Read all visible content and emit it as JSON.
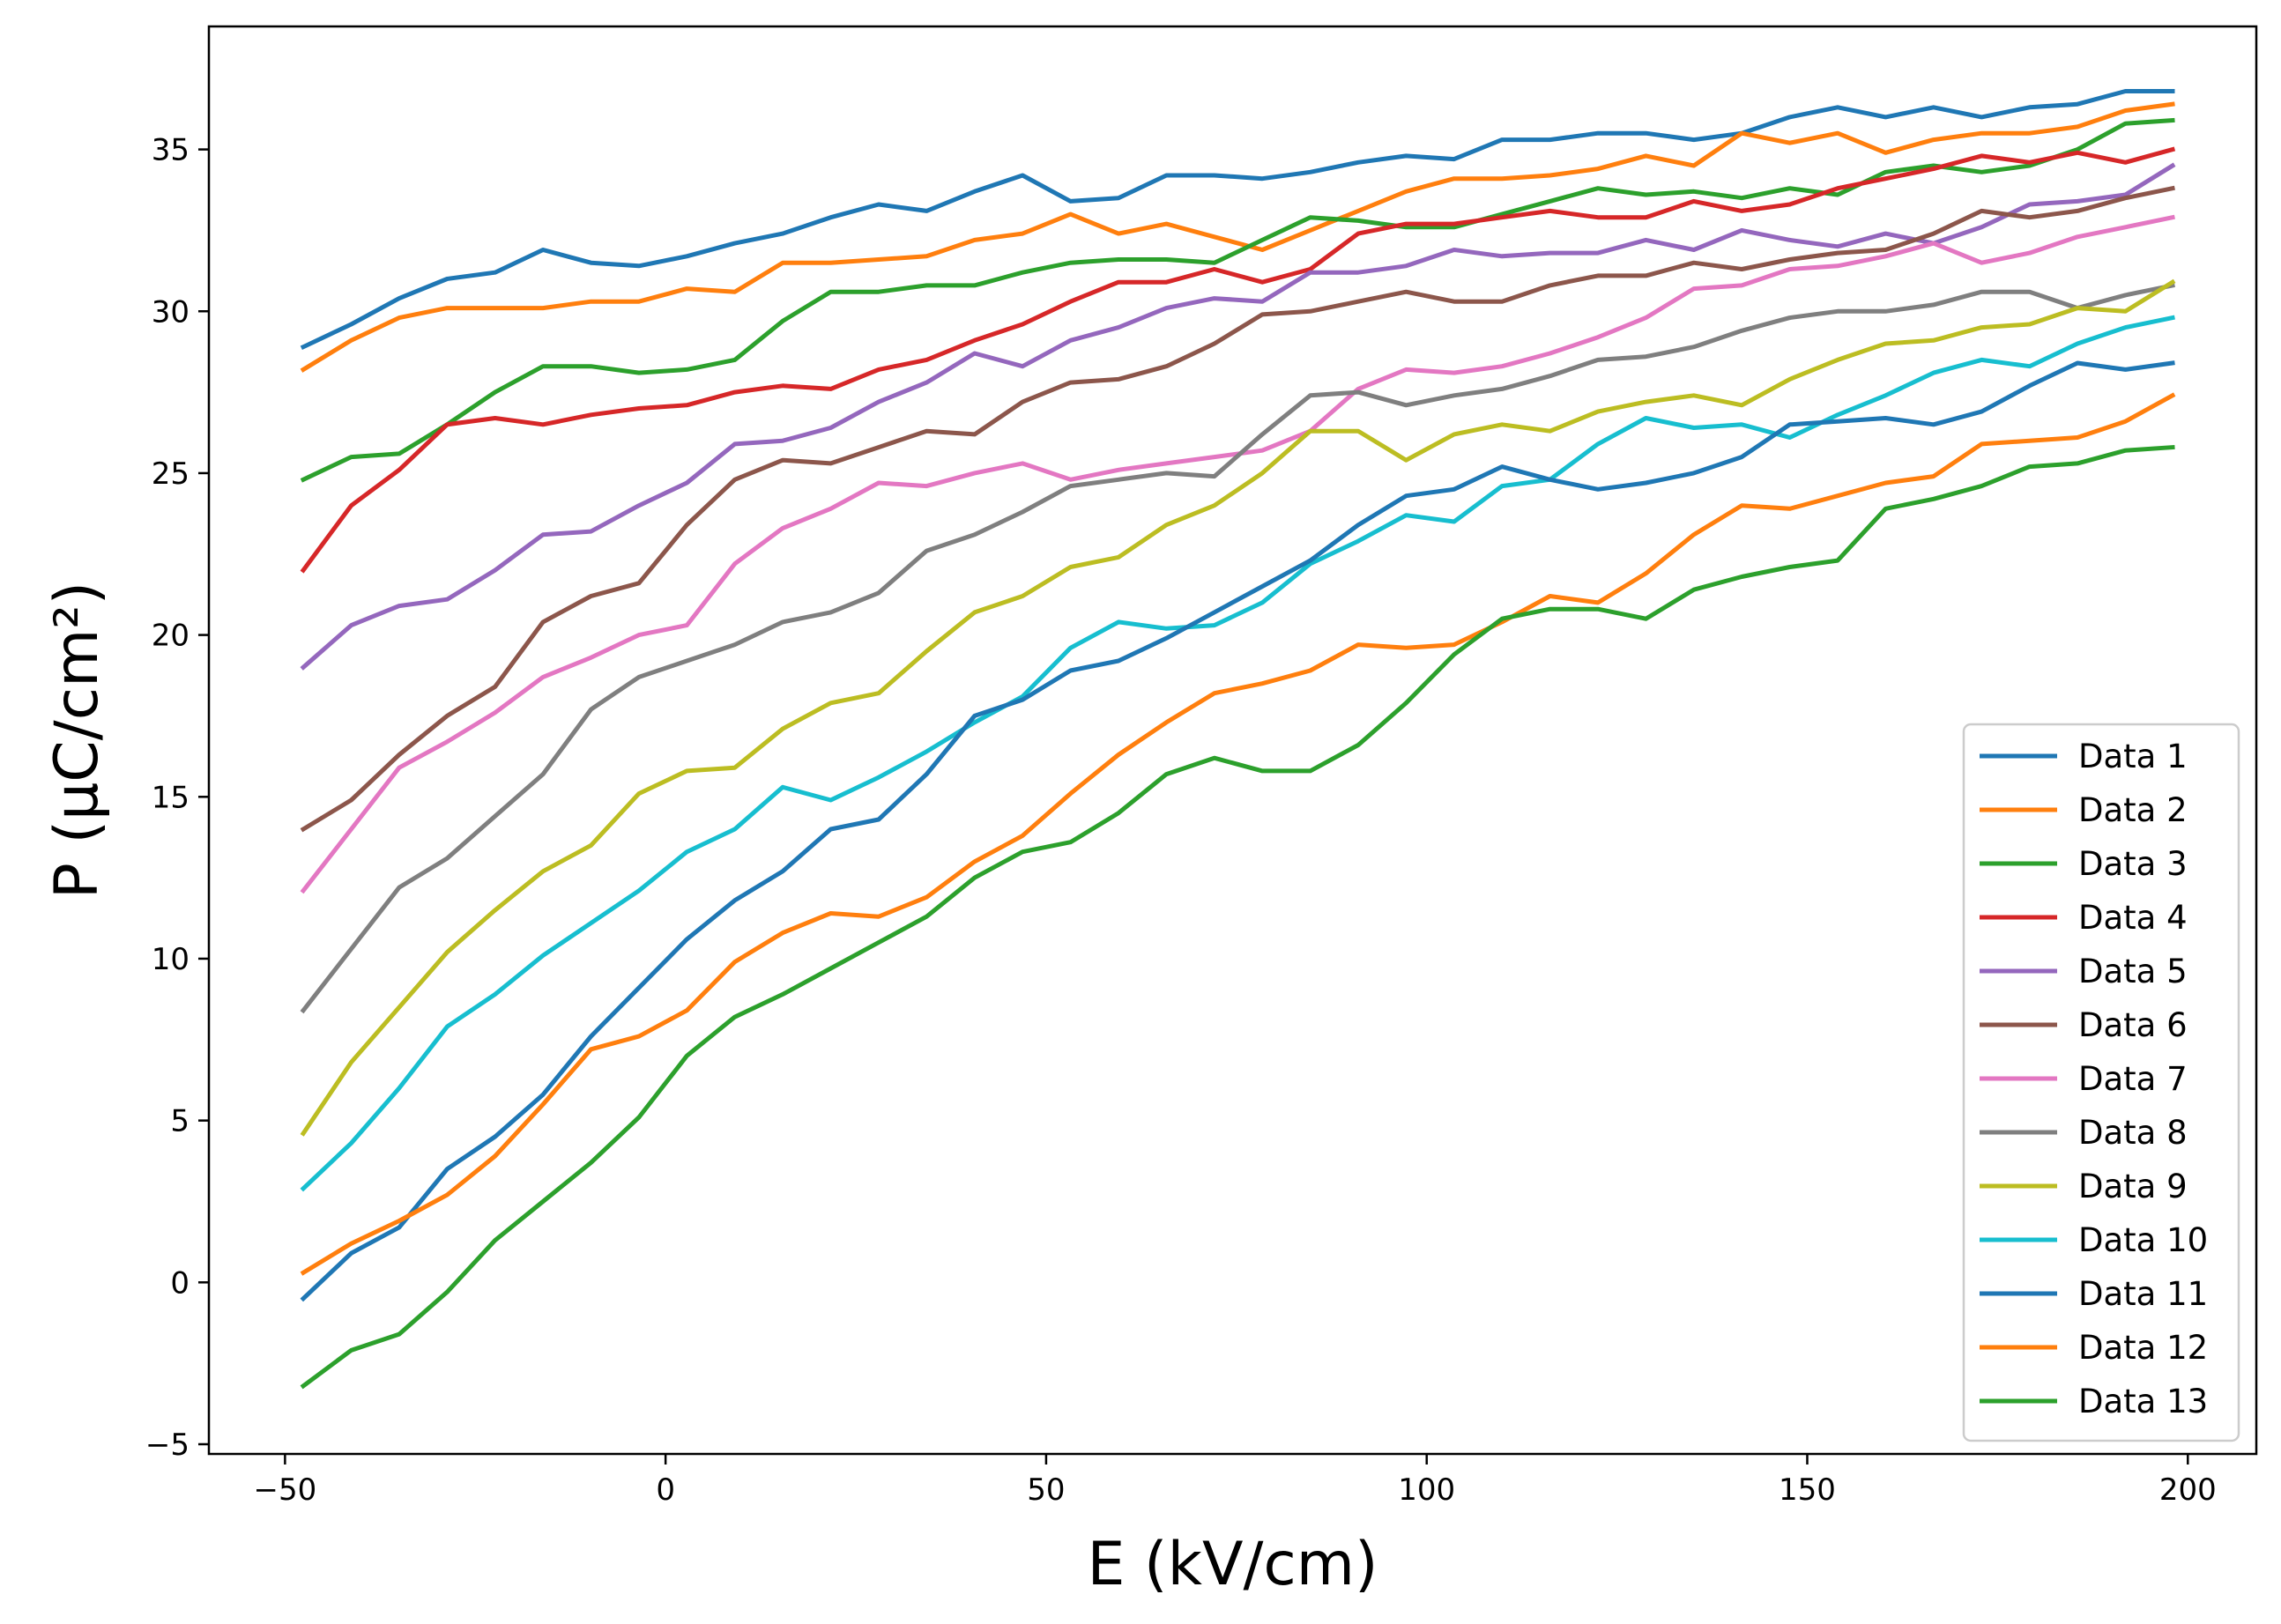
{
  "chart_data": {
    "type": "line",
    "xlabel": "E (kV/cm)",
    "ylabel": "P (μC/cm²)",
    "xlim": [
      -60,
      209
    ],
    "ylim": [
      -5.3,
      38.8
    ],
    "xticks": [
      -50,
      0,
      50,
      100,
      150,
      200
    ],
    "xtick_labels": [
      "−50",
      "0",
      "50",
      "100",
      "150",
      "200"
    ],
    "yticks": [
      -5,
      0,
      5,
      10,
      15,
      20,
      25,
      30,
      35
    ],
    "ytick_labels": [
      "−5",
      "0",
      "5",
      "10",
      "15",
      "20",
      "25",
      "30",
      "35"
    ],
    "grid": false,
    "legend_position": "bottom-right",
    "x": [
      -47.6,
      -41.3,
      -35.0,
      -28.7,
      -22.4,
      -16.1,
      -9.8,
      -3.5,
      2.8,
      9.1,
      15.4,
      21.7,
      28.0,
      34.3,
      40.6,
      46.9,
      53.2,
      59.5,
      65.8,
      72.1,
      78.4,
      84.7,
      91.0,
      97.3,
      103.6,
      109.9,
      116.2,
      122.5,
      128.8,
      135.1,
      141.4,
      147.7,
      154.0,
      160.3,
      166.6,
      172.9,
      179.2,
      185.5,
      191.8,
      198.0
    ],
    "series": [
      {
        "name": "Data 1",
        "color": "#1f77b4",
        "values": [
          28.9,
          29.6,
          30.4,
          31.0,
          31.2,
          31.9,
          31.5,
          31.4,
          31.7,
          32.1,
          32.4,
          32.9,
          33.3,
          33.1,
          33.7,
          34.2,
          33.4,
          33.5,
          34.2,
          34.2,
          34.1,
          34.3,
          34.6,
          34.8,
          34.7,
          35.3,
          35.3,
          35.5,
          35.5,
          35.3,
          35.5,
          36.0,
          36.3,
          36.0,
          36.3,
          36.0,
          36.3,
          36.4,
          36.8,
          36.8
        ]
      },
      {
        "name": "Data 2",
        "color": "#ff7f0e",
        "values": [
          28.2,
          29.1,
          29.8,
          30.1,
          30.1,
          30.1,
          30.3,
          30.3,
          30.7,
          30.6,
          31.5,
          31.5,
          31.6,
          31.7,
          32.2,
          32.4,
          33.0,
          32.4,
          32.7,
          32.3,
          31.9,
          32.5,
          33.1,
          33.7,
          34.1,
          34.1,
          34.2,
          34.4,
          34.8,
          34.5,
          35.5,
          35.2,
          35.5,
          34.9,
          35.3,
          35.5,
          35.5,
          35.7,
          36.2,
          36.4
        ]
      },
      {
        "name": "Data 3",
        "color": "#2ca02c",
        "values": [
          24.8,
          25.5,
          25.6,
          26.5,
          27.5,
          28.3,
          28.3,
          28.1,
          28.2,
          28.5,
          29.7,
          30.6,
          30.6,
          30.8,
          30.8,
          31.2,
          31.5,
          31.6,
          31.6,
          31.5,
          32.2,
          32.9,
          32.8,
          32.6,
          32.6,
          33.0,
          33.4,
          33.8,
          33.6,
          33.7,
          33.5,
          33.8,
          33.6,
          34.3,
          34.5,
          34.3,
          34.5,
          35.0,
          35.8,
          35.9
        ]
      },
      {
        "name": "Data 4",
        "color": "#d62728",
        "values": [
          22.0,
          24.0,
          25.1,
          26.5,
          26.7,
          26.5,
          26.8,
          27.0,
          27.1,
          27.5,
          27.7,
          27.6,
          28.2,
          28.5,
          29.1,
          29.6,
          30.3,
          30.9,
          30.9,
          31.3,
          30.9,
          31.3,
          32.4,
          32.7,
          32.7,
          32.9,
          33.1,
          32.9,
          32.9,
          33.4,
          33.1,
          33.3,
          33.8,
          34.1,
          34.4,
          34.8,
          34.6,
          34.9,
          34.6,
          35.0
        ]
      },
      {
        "name": "Data 5",
        "color": "#9467bd",
        "values": [
          19.0,
          20.3,
          20.9,
          21.1,
          22.0,
          23.1,
          23.2,
          24.0,
          24.7,
          25.9,
          26.0,
          26.4,
          27.2,
          27.8,
          28.7,
          28.3,
          29.1,
          29.5,
          30.1,
          30.4,
          30.3,
          31.2,
          31.2,
          31.4,
          31.9,
          31.7,
          31.8,
          31.8,
          32.2,
          31.9,
          32.5,
          32.2,
          32.0,
          32.4,
          32.1,
          32.6,
          33.3,
          33.4,
          33.6,
          34.5
        ]
      },
      {
        "name": "Data 6",
        "color": "#8c564b",
        "values": [
          14.0,
          14.9,
          16.3,
          17.5,
          18.4,
          20.4,
          21.2,
          21.6,
          23.4,
          24.8,
          25.4,
          25.3,
          25.8,
          26.3,
          26.2,
          27.2,
          27.8,
          27.9,
          28.3,
          29.0,
          29.9,
          30.0,
          30.3,
          30.6,
          30.3,
          30.3,
          30.8,
          31.1,
          31.1,
          31.5,
          31.3,
          31.6,
          31.8,
          31.9,
          32.4,
          33.1,
          32.9,
          33.1,
          33.5,
          33.8
        ]
      },
      {
        "name": "Data 7",
        "color": "#e377c2",
        "values": [
          12.1,
          14.0,
          15.9,
          16.7,
          17.6,
          18.7,
          19.3,
          20.0,
          20.3,
          22.2,
          23.3,
          23.9,
          24.7,
          24.6,
          25.0,
          25.3,
          24.8,
          25.1,
          25.3,
          25.5,
          25.7,
          26.3,
          27.6,
          28.2,
          28.1,
          28.3,
          28.7,
          29.2,
          29.8,
          30.7,
          30.8,
          31.3,
          31.4,
          31.7,
          32.1,
          31.5,
          31.8,
          32.3,
          32.6,
          32.9
        ]
      },
      {
        "name": "Data 8",
        "color": "#7f7f7f",
        "values": [
          8.4,
          10.3,
          12.2,
          13.1,
          14.4,
          15.7,
          17.7,
          18.7,
          19.2,
          19.7,
          20.4,
          20.7,
          21.3,
          22.6,
          23.1,
          23.8,
          24.6,
          24.8,
          25.0,
          24.9,
          26.2,
          27.4,
          27.5,
          27.1,
          27.4,
          27.6,
          28.0,
          28.5,
          28.6,
          28.9,
          29.4,
          29.8,
          30.0,
          30.0,
          30.2,
          30.6,
          30.6,
          30.1,
          30.5,
          30.8
        ]
      },
      {
        "name": "Data 9",
        "color": "#bcbd22",
        "values": [
          4.6,
          6.8,
          8.5,
          10.2,
          11.5,
          12.7,
          13.5,
          15.1,
          15.8,
          15.9,
          17.1,
          17.9,
          18.2,
          19.5,
          20.7,
          21.2,
          22.1,
          22.4,
          23.4,
          24.0,
          25.0,
          26.3,
          26.3,
          25.4,
          26.2,
          26.5,
          26.3,
          26.9,
          27.2,
          27.4,
          27.1,
          27.9,
          28.5,
          29.0,
          29.1,
          29.5,
          29.6,
          30.1,
          30.0,
          30.9
        ]
      },
      {
        "name": "Data 10",
        "color": "#17becf",
        "values": [
          2.9,
          4.3,
          6.0,
          7.9,
          8.9,
          10.1,
          11.1,
          12.1,
          13.3,
          14.0,
          15.3,
          14.9,
          15.6,
          16.4,
          17.3,
          18.1,
          19.6,
          20.4,
          20.2,
          20.3,
          21.0,
          22.2,
          22.9,
          23.7,
          23.5,
          24.6,
          24.8,
          25.9,
          26.7,
          26.4,
          26.5,
          26.1,
          26.8,
          27.4,
          28.1,
          28.5,
          28.3,
          29.0,
          29.5,
          29.8
        ]
      },
      {
        "name": "Data 11",
        "color": "#1f77b4",
        "values": [
          -0.5,
          0.9,
          1.7,
          3.5,
          4.5,
          5.8,
          7.6,
          9.1,
          10.6,
          11.8,
          12.7,
          14.0,
          14.3,
          15.7,
          17.5,
          18.0,
          18.9,
          19.2,
          19.9,
          20.7,
          21.5,
          22.3,
          23.4,
          24.3,
          24.5,
          25.2,
          24.8,
          24.5,
          24.7,
          25.0,
          25.5,
          26.5,
          26.6,
          26.7,
          26.5,
          26.9,
          27.7,
          28.4,
          28.2,
          28.4
        ]
      },
      {
        "name": "Data 12",
        "color": "#ff7f0e",
        "values": [
          0.3,
          1.2,
          1.9,
          2.7,
          3.9,
          5.5,
          7.2,
          7.6,
          8.4,
          9.9,
          10.8,
          11.4,
          11.3,
          11.9,
          13.0,
          13.8,
          15.1,
          16.3,
          17.3,
          18.2,
          18.5,
          18.9,
          19.7,
          19.6,
          19.7,
          20.4,
          21.2,
          21.0,
          21.9,
          23.1,
          24.0,
          23.9,
          24.3,
          24.7,
          24.9,
          25.9,
          26.0,
          26.1,
          26.6,
          27.4
        ]
      },
      {
        "name": "Data 13",
        "color": "#2ca02c",
        "values": [
          -3.2,
          -2.1,
          -1.6,
          -0.3,
          1.3,
          2.5,
          3.7,
          5.1,
          7.0,
          8.2,
          8.9,
          9.7,
          10.5,
          11.3,
          12.5,
          13.3,
          13.6,
          14.5,
          15.7,
          16.2,
          15.8,
          15.8,
          16.6,
          17.9,
          19.4,
          20.5,
          20.8,
          20.8,
          20.5,
          21.4,
          21.8,
          22.1,
          22.3,
          23.9,
          24.2,
          24.6,
          25.2,
          25.3,
          25.7,
          25.8
        ]
      }
    ]
  }
}
